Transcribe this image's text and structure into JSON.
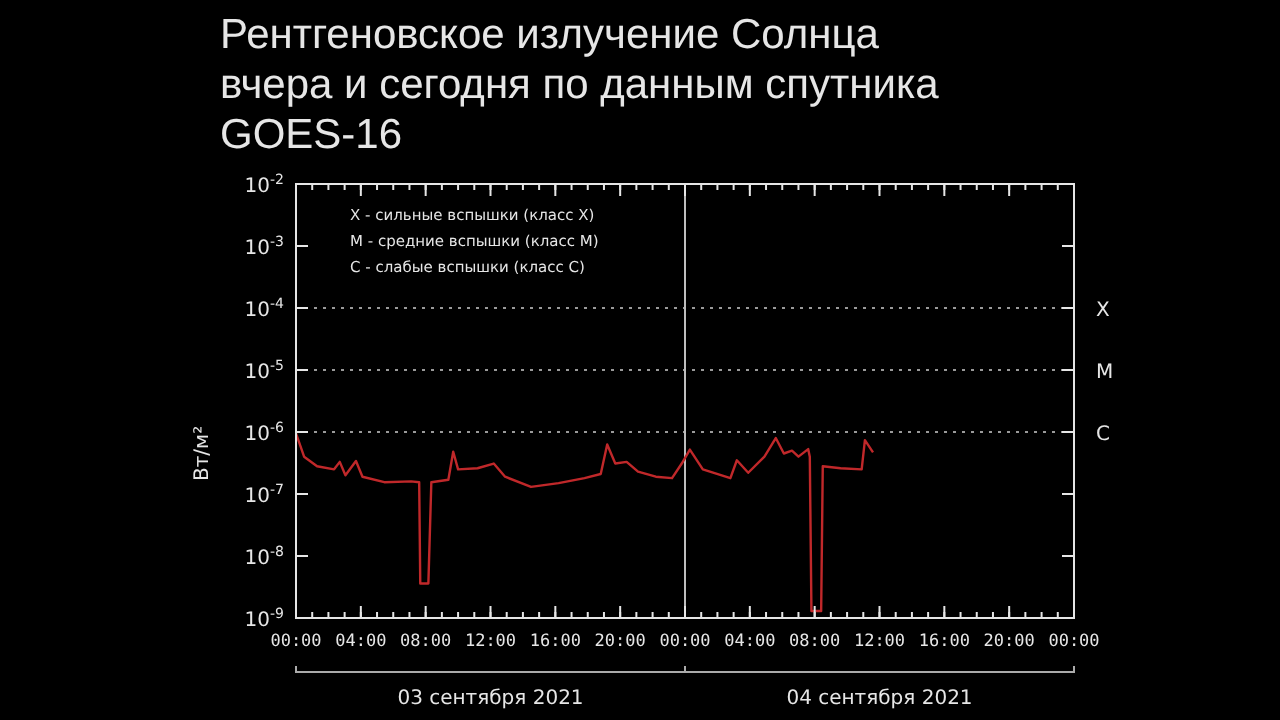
{
  "chart_data": {
    "type": "line",
    "title": "Рентгеновское излучение Солнца вчера и сегодня по данным спутника GOES-16",
    "ylabel": "Вт/м²",
    "log": "y",
    "x": [
      "2021-09-03T00:00",
      "2021-09-03T00:30",
      "2021-09-03T01:18",
      "2021-09-03T02:21",
      "2021-09-03T02:42",
      "2021-09-03T03:03",
      "2021-09-03T03:42",
      "2021-09-03T04:06",
      "2021-09-03T05:27",
      "2021-09-03T07:06",
      "2021-09-03T07:36",
      "2021-09-03T07:40",
      "2021-09-03T08:10",
      "2021-09-03T08:21",
      "2021-09-03T09:24",
      "2021-09-03T09:42",
      "2021-09-03T10:00",
      "2021-09-03T11:12",
      "2021-09-03T12:12",
      "2021-09-03T12:54",
      "2021-09-03T14:30",
      "2021-09-03T16:12",
      "2021-09-03T17:48",
      "2021-09-03T18:48",
      "2021-09-03T19:12",
      "2021-09-03T19:42",
      "2021-09-03T20:24",
      "2021-09-03T21:06",
      "2021-09-03T22:12",
      "2021-09-03T23:12",
      "2021-09-03T23:48",
      "2021-09-04T00:18",
      "2021-09-04T01:06",
      "2021-09-04T02:48",
      "2021-09-04T03:12",
      "2021-09-04T03:54",
      "2021-09-04T04:54",
      "2021-09-04T05:36",
      "2021-09-04T06:06",
      "2021-09-04T06:36",
      "2021-09-04T07:00",
      "2021-09-04T07:36",
      "2021-09-04T07:42",
      "2021-09-04T07:48",
      "2021-09-04T08:24",
      "2021-09-04T08:30",
      "2021-09-04T09:36",
      "2021-09-04T10:54",
      "2021-09-04T11:06",
      "2021-09-04T11:36"
    ],
    "series": [
      {
        "color": "#c0282a",
        "values": [
          9.5e-07,
          4e-07,
          2.8e-07,
          2.5e-07,
          3.3e-07,
          2e-07,
          3.4e-07,
          1.9e-07,
          1.55e-07,
          1.6e-07,
          1.55e-07,
          3.6e-09,
          3.6e-09,
          1.55e-07,
          1.7e-07,
          4.8e-07,
          2.5e-07,
          2.6e-07,
          3.1e-07,
          1.9e-07,
          1.3e-07,
          1.5e-07,
          1.8e-07,
          2.1e-07,
          6.3e-07,
          3.1e-07,
          3.3e-07,
          2.3e-07,
          1.9e-07,
          1.8e-07,
          3.1e-07,
          5.2e-07,
          2.5e-07,
          1.8e-07,
          3.5e-07,
          2.2e-07,
          4e-07,
          8e-07,
          4.5e-07,
          5e-07,
          4e-07,
          5.3e-07,
          4e-07,
          1.3e-09,
          1.3e-09,
          2.8e-07,
          2.6e-07,
          2.5e-07,
          7.4e-07,
          4.7e-07
        ]
      }
    ],
    "xlim": [
      "2021-09-03T00:00",
      "2021-09-05T00:00"
    ],
    "xticks": [
      {
        "value": "2021-09-03T00:00",
        "label": "00:00"
      },
      {
        "value": "2021-09-03T04:00",
        "label": "04:00"
      },
      {
        "value": "2021-09-03T08:00",
        "label": "08:00"
      },
      {
        "value": "2021-09-03T12:00",
        "label": "12:00"
      },
      {
        "value": "2021-09-03T16:00",
        "label": "16:00"
      },
      {
        "value": "2021-09-03T20:00",
        "label": "20:00"
      },
      {
        "value": "2021-09-04T00:00",
        "label": "00:00"
      },
      {
        "value": "2021-09-04T04:00",
        "label": "04:00"
      },
      {
        "value": "2021-09-04T08:00",
        "label": "08:00"
      },
      {
        "value": "2021-09-04T12:00",
        "label": "12:00"
      },
      {
        "value": "2021-09-04T16:00",
        "label": "16:00"
      },
      {
        "value": "2021-09-04T20:00",
        "label": "20:00"
      },
      {
        "value": "2021-09-05T00:00",
        "label": "00:00"
      }
    ],
    "ylim": [
      1e-09,
      0.01
    ],
    "yticks": [
      {
        "value": 1e-09,
        "label": "10$^{-9}$"
      },
      {
        "value": 1e-08,
        "label": "10$^{-8}$"
      },
      {
        "value": 1e-07,
        "label": "10$^{-7}$"
      },
      {
        "value": 1e-06,
        "label": "10$^{-6}$"
      },
      {
        "value": 1e-05,
        "label": "10$^{-5}$"
      },
      {
        "value": 0.0001,
        "label": "10$^{-4}$"
      },
      {
        "value": 0.001,
        "label": "10$^{-3}$"
      },
      {
        "value": 0.01,
        "label": "10$^{-2}$"
      }
    ],
    "ref_lines": [
      {
        "axis": "y",
        "value": 0.0001,
        "label": "X",
        "line_style": "dotted",
        "color": "#9a9a9a"
      },
      {
        "axis": "y",
        "value": 1e-05,
        "label": "M",
        "line_style": "dotted",
        "color": "#9a9a9a"
      },
      {
        "axis": "y",
        "value": 1e-06,
        "label": "C",
        "line_style": "dotted",
        "color": "#9a9a9a"
      },
      {
        "axis": "x",
        "value": "2021-09-04T00:00",
        "line_style": "solid",
        "color": "#bdbdbd"
      }
    ],
    "annotations": [
      "X - сильные вспышки (класс X)",
      "M - средние вспышки (класс M)",
      "C - слабые вспышки (класс C)",
      "03 сентября 2021",
      "04 сентября 2021"
    ],
    "line_style": "solid",
    "marker": "none"
  }
}
